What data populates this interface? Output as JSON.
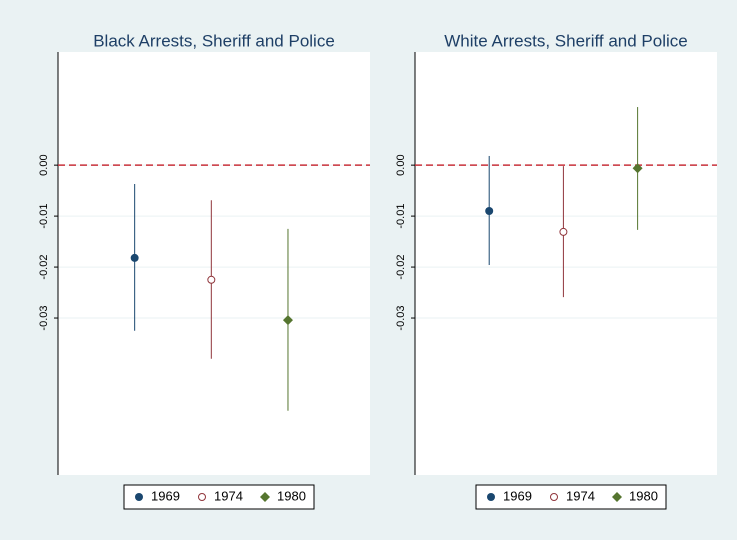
{
  "chart_data": [
    {
      "type": "errorbar",
      "title": "Black Arrests, Sheriff and Police",
      "ylim": [
        -0.0608,
        0.0222
      ],
      "yticks": [
        {
          "value": 0,
          "label": "0.00"
        },
        {
          "value": -0.01,
          "label": "-0.01"
        },
        {
          "value": -0.02,
          "label": "-0.02"
        },
        {
          "value": -0.03,
          "label": "-0.03"
        }
      ],
      "grid": true,
      "refline": 0,
      "refline_color": "#c8303a",
      "series": [
        {
          "name": "1969",
          "color": "#1a476f",
          "marker": "circle",
          "values": [
            -0.0182
          ],
          "lower": [
            -0.0325
          ],
          "upper": [
            -0.0037
          ]
        },
        {
          "name": "1974",
          "color": "#90353b",
          "marker": "hollow-circle",
          "values": [
            -0.0225
          ],
          "lower": [
            -0.038
          ],
          "upper": [
            -0.0069
          ]
        },
        {
          "name": "1980",
          "color": "#55752f",
          "marker": "diamond",
          "values": [
            -0.0304
          ],
          "lower": [
            -0.0482
          ],
          "upper": [
            -0.0125
          ]
        }
      ]
    },
    {
      "type": "errorbar",
      "title": "White Arrests, Sheriff and Police",
      "ylim": [
        -0.0608,
        0.0222
      ],
      "yticks": [
        {
          "value": 0,
          "label": "0.00"
        },
        {
          "value": -0.01,
          "label": "-0.01"
        },
        {
          "value": -0.02,
          "label": "-0.02"
        },
        {
          "value": -0.03,
          "label": "-0.03"
        }
      ],
      "grid": true,
      "refline": 0,
      "refline_color": "#c8303a",
      "series": [
        {
          "name": "1969",
          "color": "#1a476f",
          "marker": "circle",
          "values": [
            -0.009
          ],
          "lower": [
            -0.0196
          ],
          "upper": [
            0.0018
          ]
        },
        {
          "name": "1974",
          "color": "#90353b",
          "marker": "hollow-circle",
          "values": [
            -0.0131
          ],
          "lower": [
            -0.0259
          ],
          "upper": [
            -0.0002
          ]
        },
        {
          "name": "1980",
          "color": "#55752f",
          "marker": "diamond",
          "values": [
            -0.0006
          ],
          "lower": [
            -0.0127
          ],
          "upper": [
            0.0114
          ]
        }
      ]
    }
  ]
}
